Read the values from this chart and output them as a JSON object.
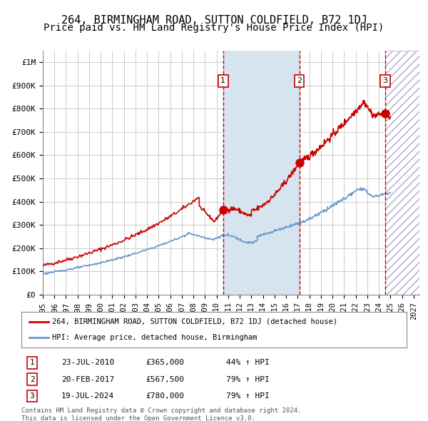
{
  "title": "264, BIRMINGHAM ROAD, SUTTON COLDFIELD, B72 1DJ",
  "subtitle": "Price paid vs. HM Land Registry's House Price Index (HPI)",
  "xlabel": "",
  "ylabel": "",
  "ylim": [
    0,
    1050000
  ],
  "xlim_start": 1995.0,
  "xlim_end": 2027.5,
  "yticks": [
    0,
    100000,
    200000,
    300000,
    400000,
    500000,
    600000,
    700000,
    800000,
    900000,
    1000000
  ],
  "ytick_labels": [
    "£0",
    "£100K",
    "£200K",
    "£300K",
    "£400K",
    "£500K",
    "£600K",
    "£700K",
    "£800K",
    "£900K",
    "£1M"
  ],
  "xticks": [
    1995,
    1996,
    1997,
    1998,
    1999,
    2000,
    2001,
    2002,
    2003,
    2004,
    2005,
    2006,
    2007,
    2008,
    2009,
    2010,
    2011,
    2012,
    2013,
    2014,
    2015,
    2016,
    2017,
    2018,
    2019,
    2020,
    2021,
    2022,
    2023,
    2024,
    2025,
    2026,
    2027
  ],
  "sale_dates": [
    2010.556,
    2017.13,
    2024.544
  ],
  "sale_prices": [
    365000,
    567500,
    780000
  ],
  "sale_labels": [
    "1",
    "2",
    "3"
  ],
  "shaded_region": [
    2010.556,
    2017.13
  ],
  "future_region": [
    2024.544,
    2027.5
  ],
  "red_line_color": "#cc0000",
  "blue_line_color": "#6699cc",
  "shade_color": "#d6e4f0",
  "future_hatch_color": "#aaaacc",
  "legend_label_red": "264, BIRMINGHAM ROAD, SUTTON COLDFIELD, B72 1DJ (detached house)",
  "legend_label_blue": "HPI: Average price, detached house, Birmingham",
  "table_data": [
    [
      "1",
      "23-JUL-2010",
      "£365,000",
      "44% ↑ HPI"
    ],
    [
      "2",
      "20-FEB-2017",
      "£567,500",
      "79% ↑ HPI"
    ],
    [
      "3",
      "19-JUL-2024",
      "£780,000",
      "79% ↑ HPI"
    ]
  ],
  "footer_text": "Contains HM Land Registry data © Crown copyright and database right 2024.\nThis data is licensed under the Open Government Licence v3.0.",
  "bg_color": "#ffffff",
  "grid_color": "#cccccc",
  "title_fontsize": 11,
  "subtitle_fontsize": 10,
  "tick_fontsize": 8
}
